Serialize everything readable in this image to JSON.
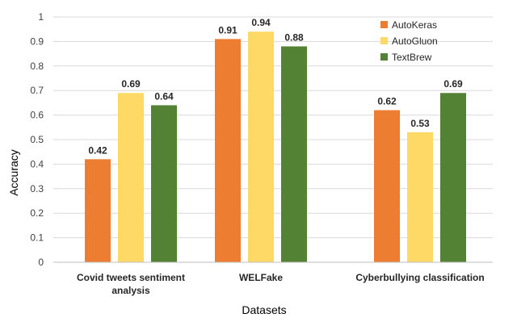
{
  "chart_data": {
    "type": "bar",
    "categories": [
      [
        "Covid tweets sentiment",
        "analysis"
      ],
      [
        "WELFake"
      ],
      [
        "Cyberbullying classification"
      ]
    ],
    "series": [
      {
        "name": "AutoKeras",
        "color": "#ED7D31",
        "values": [
          0.42,
          0.91,
          0.62
        ]
      },
      {
        "name": "AutoGluon",
        "color": "#FFD966",
        "values": [
          0.69,
          0.94,
          0.53
        ]
      },
      {
        "name": "TextBrew",
        "color": "#548235",
        "values": [
          0.64,
          0.88,
          0.69
        ]
      }
    ],
    "xlabel": "Datasets",
    "ylabel": "Accuracy",
    "ylim": [
      0,
      1
    ],
    "yticks": [
      "0",
      "0.1",
      "0.2",
      "0.3",
      "0.4",
      "0.5",
      "0.6",
      "0.7",
      "0.8",
      "0.9",
      "1"
    ],
    "grid": true,
    "legend_position": "top-right"
  }
}
